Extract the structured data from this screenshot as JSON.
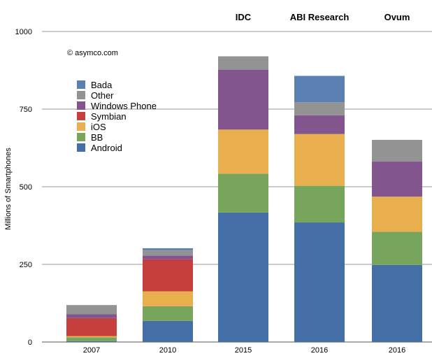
{
  "chart_data": {
    "type": "bar",
    "stacked": true,
    "title": "",
    "xlabel": "",
    "ylabel": "Millions of Smartphones",
    "ylim": [
      0,
      1000
    ],
    "yticks": [
      "0",
      "250",
      "500",
      "750",
      "1000"
    ],
    "grid": true,
    "legend_position": "top-left",
    "annotation": "© asymco.com",
    "categories": [
      "2007",
      "2010",
      "2015",
      "2016",
      "2016"
    ],
    "group_labels": [
      "",
      "",
      "IDC",
      "ABI Research",
      "Ovum"
    ],
    "series": [
      {
        "name": "Android",
        "color": "#436fa6",
        "values": [
          3,
          68,
          417,
          385,
          248
        ]
      },
      {
        "name": "BB",
        "color": "#76a55b",
        "values": [
          12,
          47,
          125,
          118,
          107
        ]
      },
      {
        "name": "iOS",
        "color": "#e9af4e",
        "values": [
          4,
          48,
          142,
          167,
          113
        ]
      },
      {
        "name": "Symbian",
        "color": "#c5403d",
        "values": [
          58,
          103,
          0,
          0,
          0
        ]
      },
      {
        "name": "Windows Phone",
        "color": "#82558f",
        "values": [
          12,
          12,
          193,
          60,
          113
        ]
      },
      {
        "name": "Other",
        "color": "#939393",
        "values": [
          30,
          18,
          43,
          42,
          70
        ]
      },
      {
        "name": "Bada",
        "color": "#5a80b1",
        "values": [
          0,
          6,
          0,
          85,
          0
        ]
      }
    ]
  }
}
